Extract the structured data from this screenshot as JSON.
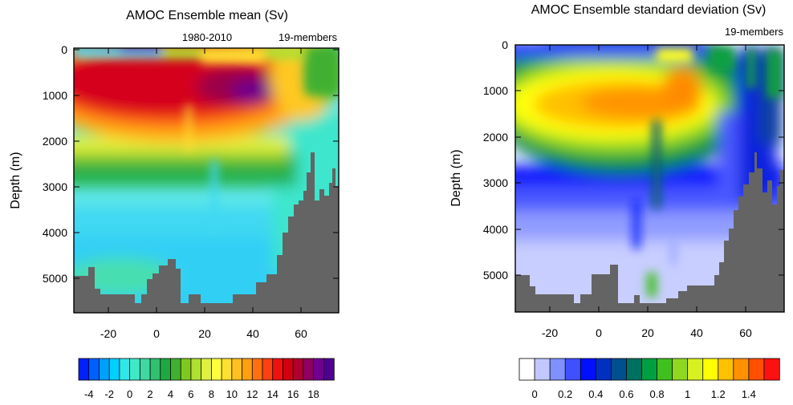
{
  "panels": [
    {
      "title": "AMOC Ensemble mean (Sv)",
      "left_string": "",
      "center_string": "1980-2010",
      "right_string": "19-members",
      "ylabel": "Depth (m)",
      "x_ticks": [
        "-20",
        "0",
        "20",
        "40",
        "60"
      ],
      "y_ticks": [
        "0",
        "1000",
        "2000",
        "3000",
        "4000",
        "5000"
      ],
      "colorbar_labels": [
        "-4",
        "-2",
        "0",
        "2",
        "4",
        "6",
        "8",
        "10",
        "12",
        "14",
        "16",
        "18"
      ]
    },
    {
      "title": "AMOC Ensemble standard deviation (Sv)",
      "left_string": "",
      "center_string": "",
      "right_string": "19-members",
      "ylabel": "Depth (m)",
      "x_ticks": [
        "-20",
        "0",
        "20",
        "40",
        "60"
      ],
      "y_ticks": [
        "0",
        "1000",
        "2000",
        "3000",
        "4000",
        "5000"
      ],
      "colorbar_labels": [
        "0",
        "0.2",
        "0.4",
        "0.6",
        "0.8",
        "1",
        "1.2",
        "1.4"
      ]
    }
  ],
  "chart_data": [
    {
      "type": "heatmap",
      "title": "AMOC Ensemble mean (Sv)",
      "subtitle": "1980-2010",
      "annotation": "19-members",
      "xlabel": "",
      "ylabel": "Depth (m)",
      "xlim": [
        -34,
        75
      ],
      "ylim": [
        5800,
        0
      ],
      "x_ticks": [
        -20,
        0,
        20,
        40,
        60
      ],
      "y_ticks": [
        0,
        1000,
        2000,
        3000,
        4000,
        5000
      ],
      "levels": [
        -5,
        -4,
        -3,
        -2,
        -1,
        0,
        1,
        2,
        3,
        4,
        5,
        6,
        7,
        8,
        9,
        10,
        11,
        12,
        13,
        14,
        15,
        16,
        17,
        18,
        19
      ],
      "colors": [
        "#0020ff",
        "#0060ff",
        "#00a0ff",
        "#00d0ff",
        "#30e8e8",
        "#40e8c8",
        "#40d8a0",
        "#30c070",
        "#20a840",
        "#40b030",
        "#80c820",
        "#b0e030",
        "#e0f040",
        "#ffff40",
        "#ffe030",
        "#ffc020",
        "#ffa010",
        "#ff7010",
        "#ff4010",
        "#f01010",
        "#d00010",
        "#b00030",
        "#900060",
        "#700090",
        "#500090"
      ],
      "field_features": [
        {
          "feature": "surface overturning cell core",
          "lat_range": [
            -34,
            50
          ],
          "depth_range": [
            400,
            1500
          ],
          "value": 16
        },
        {
          "feature": "maximum core",
          "lat": 35,
          "depth": 1000,
          "value": 18
        },
        {
          "feature": "deep water below 3000 m",
          "value": 0.5
        },
        {
          "feature": "abyssal cell",
          "lat_range": [
            -30,
            -10
          ],
          "depth_range": [
            4700,
            5600
          ],
          "value": 1
        }
      ],
      "bathymetry_max_depth": [
        {
          "lat": -34,
          "depth": 5400
        },
        {
          "lat": -30,
          "depth": 5000
        },
        {
          "lat": -28,
          "depth": 5400
        },
        {
          "lat": -12,
          "depth": 5400
        },
        {
          "lat": -8,
          "depth": 5600
        },
        {
          "lat": -4,
          "depth": 5250
        },
        {
          "lat": 2,
          "depth": 5000
        },
        {
          "lat": 8,
          "depth": 4800
        },
        {
          "lat": 12,
          "depth": 5500
        },
        {
          "lat": 20,
          "depth": 5600
        },
        {
          "lat": 38,
          "depth": 5400
        },
        {
          "lat": 42,
          "depth": 5100
        },
        {
          "lat": 48,
          "depth": 4800
        },
        {
          "lat": 52,
          "depth": 4300
        },
        {
          "lat": 56,
          "depth": 3500
        },
        {
          "lat": 59,
          "depth": 2700
        },
        {
          "lat": 62,
          "depth": 3300
        },
        {
          "lat": 66,
          "depth": 3700
        },
        {
          "lat": 70,
          "depth": 3000
        },
        {
          "lat": 73,
          "depth": 2800
        },
        {
          "lat": 75,
          "depth": 3600
        }
      ],
      "colorbar_labels": [
        -4,
        -2,
        0,
        2,
        4,
        6,
        8,
        10,
        12,
        14,
        16,
        18
      ]
    },
    {
      "type": "heatmap",
      "title": "AMOC Ensemble standard deviation (Sv)",
      "annotation": "19-members",
      "xlabel": "",
      "ylabel": "Depth (m)",
      "xlim": [
        -34,
        75
      ],
      "ylim": [
        5800,
        0
      ],
      "x_ticks": [
        -20,
        0,
        20,
        40,
        60
      ],
      "y_ticks": [
        0,
        1000,
        2000,
        3000,
        4000,
        5000
      ],
      "levels": [
        0,
        0.1,
        0.2,
        0.3,
        0.4,
        0.5,
        0.6,
        0.7,
        0.8,
        0.9,
        1.0,
        1.1,
        1.2,
        1.3,
        1.4,
        1.5,
        1.6
      ],
      "colors": [
        "#ffffff",
        "#c0c8ff",
        "#8090ff",
        "#4050ff",
        "#0010ff",
        "#0030c0",
        "#005090",
        "#007060",
        "#00a040",
        "#40c020",
        "#90d820",
        "#d8f020",
        "#ffff00",
        "#ffc000",
        "#ff9000",
        "#ff5000",
        "#ff1010"
      ],
      "field_features": [
        {
          "feature": "variability maximum",
          "lat_range": [
            -20,
            45
          ],
          "depth_range": [
            800,
            1500
          ],
          "value": 1.4
        },
        {
          "feature": "surface maximum",
          "lat": 35,
          "depth": 80,
          "value": 1.3
        },
        {
          "feature": "deep variability near 20N",
          "lat": 21,
          "depth_range": [
            5000,
            5600
          ],
          "value": 1.2
        },
        {
          "feature": "abyssal minimum",
          "depth_range": [
            4500,
            5800
          ],
          "value": 0.1
        }
      ],
      "bathymetry_max_depth": [
        {
          "lat": -34,
          "depth": 5000
        },
        {
          "lat": -30,
          "depth": 5400
        },
        {
          "lat": -16,
          "depth": 5600
        },
        {
          "lat": -4,
          "depth": 5100
        },
        {
          "lat": 4,
          "depth": 5000
        },
        {
          "lat": 8,
          "depth": 5200
        },
        {
          "lat": 12,
          "depth": 5600
        },
        {
          "lat": 20,
          "depth": 5600
        },
        {
          "lat": 28,
          "depth": 5500
        },
        {
          "lat": 36,
          "depth": 5300
        },
        {
          "lat": 46,
          "depth": 5000
        },
        {
          "lat": 52,
          "depth": 4300
        },
        {
          "lat": 56,
          "depth": 3600
        },
        {
          "lat": 60,
          "depth": 3000
        },
        {
          "lat": 62,
          "depth": 2300
        },
        {
          "lat": 66,
          "depth": 3300
        },
        {
          "lat": 70,
          "depth": 2800
        },
        {
          "lat": 75,
          "depth": 3200
        }
      ],
      "colorbar_labels": [
        0,
        0.2,
        0.4,
        0.6,
        0.8,
        1,
        1.2,
        1.4
      ]
    }
  ]
}
